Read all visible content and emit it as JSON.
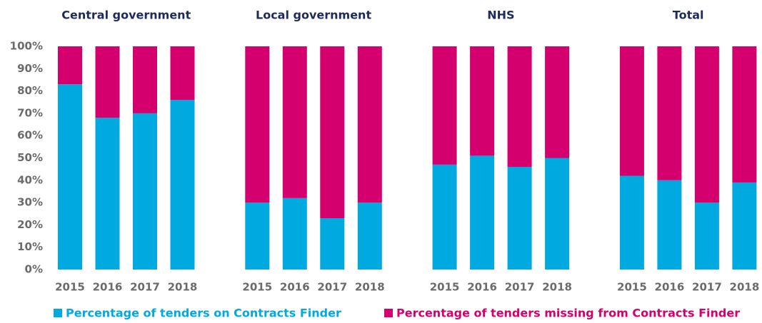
{
  "chart_data": {
    "type": "bar",
    "stacked": true,
    "ylim": [
      0,
      100
    ],
    "yticks": [
      {
        "value": 0,
        "label": "0%"
      },
      {
        "value": 10,
        "label": "10%"
      },
      {
        "value": 20,
        "label": "20%"
      },
      {
        "value": 30,
        "label": "30%"
      },
      {
        "value": 40,
        "label": "40%"
      },
      {
        "value": 50,
        "label": "50%"
      },
      {
        "value": 60,
        "label": "60%"
      },
      {
        "value": 70,
        "label": "70%"
      },
      {
        "value": 80,
        "label": "80%"
      },
      {
        "value": 90,
        "label": "90%"
      },
      {
        "value": 100,
        "label": "100%"
      }
    ],
    "legend": [
      {
        "name": "Percentage of tenders on Contracts Finder",
        "color": "#00a9e0"
      },
      {
        "name": "Percentage of tenders missing from Contracts Finder",
        "color": "#d4006e"
      }
    ],
    "panels": [
      {
        "title": "Central government",
        "categories": [
          "2015",
          "2016",
          "2017",
          "2018"
        ],
        "series": [
          {
            "values": [
              83,
              68,
              70,
              76
            ]
          },
          {
            "values": [
              17,
              32,
              30,
              24
            ]
          }
        ]
      },
      {
        "title": "Local government",
        "categories": [
          "2015",
          "2016",
          "2017",
          "2018"
        ],
        "series": [
          {
            "values": [
              30,
              32,
              23,
              30
            ]
          },
          {
            "values": [
              70,
              68,
              77,
              70
            ]
          }
        ]
      },
      {
        "title": "NHS",
        "categories": [
          "2015",
          "2016",
          "2017",
          "2018"
        ],
        "series": [
          {
            "values": [
              47,
              51,
              46,
              50
            ]
          },
          {
            "values": [
              53,
              49,
              54,
              50
            ]
          }
        ]
      },
      {
        "title": "Total",
        "categories": [
          "2015",
          "2016",
          "2017",
          "2018"
        ],
        "series": [
          {
            "values": [
              42,
              40,
              30,
              39
            ]
          },
          {
            "values": [
              58,
              60,
              70,
              61
            ]
          }
        ]
      }
    ]
  }
}
